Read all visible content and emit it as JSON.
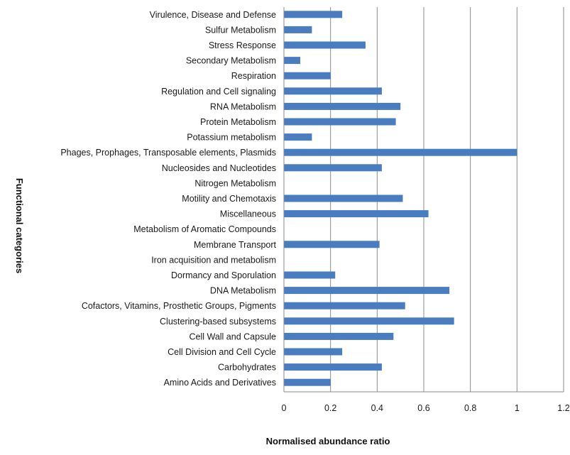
{
  "chart_data": {
    "type": "bar",
    "orientation": "horizontal",
    "title": "",
    "xlabel": "Normalised abundance ratio",
    "ylabel": "Functional categories",
    "xlim": [
      0,
      1.2
    ],
    "xticks": [
      "0",
      "0.2",
      "0.4",
      "0.6",
      "0.8",
      "1",
      "1.2"
    ],
    "grid": "vertical",
    "legend": "none",
    "bar_color": "#4a7cc0",
    "categories": [
      "Virulence, Disease and Defense",
      "Sulfur Metabolism",
      "Stress Response",
      "Secondary Metabolism",
      "Respiration",
      "Regulation and Cell signaling",
      "RNA Metabolism",
      "Protein Metabolism",
      "Potassium metabolism",
      "Phages, Prophages, Transposable elements, Plasmids",
      "Nucleosides and Nucleotides",
      "Nitrogen Metabolism",
      "Motility and Chemotaxis",
      "Miscellaneous",
      "Metabolism of Aromatic Compounds",
      "Membrane Transport",
      "Iron acquisition and metabolism",
      "Dormancy and Sporulation",
      "DNA Metabolism",
      "Cofactors, Vitamins, Prosthetic Groups, Pigments",
      "Clustering-based subsystems",
      "Cell Wall and Capsule",
      "Cell Division and Cell Cycle",
      "Carbohydrates",
      "Amino Acids and Derivatives"
    ],
    "values": [
      0.25,
      0.12,
      0.35,
      0.07,
      0.2,
      0.42,
      0.5,
      0.48,
      0.12,
      1.0,
      0.42,
      0.0,
      0.51,
      0.62,
      0.0,
      0.41,
      0.0,
      0.22,
      0.71,
      0.52,
      0.73,
      0.47,
      0.25,
      0.42,
      0.2
    ]
  }
}
